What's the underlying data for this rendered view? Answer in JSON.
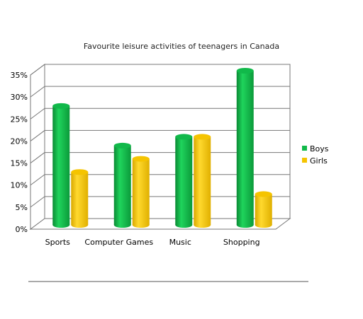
{
  "chart_data": {
    "type": "bar",
    "title": "Favourite leisure activities of teenagers in Canada",
    "categories": [
      "Sports",
      "Computer Games",
      "Music",
      "Shopping"
    ],
    "series": [
      {
        "name": "Boys",
        "values": [
          27,
          18,
          20,
          35
        ],
        "color": "#11b94a"
      },
      {
        "name": "Girls",
        "values": [
          12,
          15,
          20,
          7
        ],
        "color": "#f5c400"
      }
    ],
    "ylim": [
      0,
      35
    ],
    "yticks": [
      "0%",
      "5%",
      "10%",
      "15%",
      "20%",
      "25%",
      "30%",
      "35%"
    ],
    "grid": true,
    "legend": "right"
  }
}
